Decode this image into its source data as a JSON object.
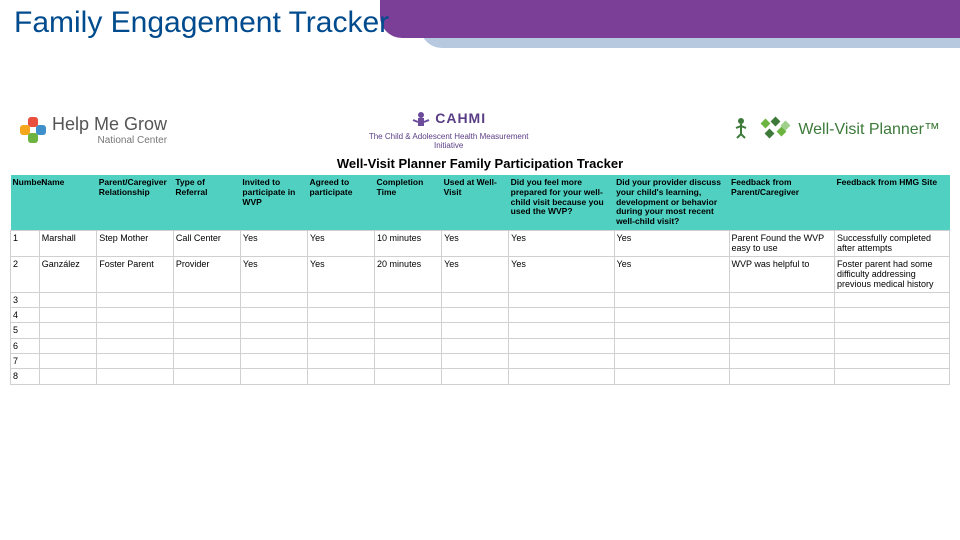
{
  "page_title": "Family Engagement Tracker",
  "colors": {
    "title_text": "#004b8d",
    "band_purple": "#7b3f98",
    "band_blue": "#a9bfd9",
    "header_bg": "#4fd0c0",
    "grid_border": "#d0d0d0"
  },
  "logos": {
    "hmg": {
      "line1": "Help Me Grow",
      "line2": "National Center"
    },
    "cahmi": {
      "name": "CAHMI",
      "sub": "The Child & Adolescent Health Measurement Initiative"
    },
    "wvp": {
      "text": "Well-Visit Planner™"
    }
  },
  "sheet_title": "Well-Visit Planner Family Participation Tracker",
  "table": {
    "columns": [
      "Number",
      "Name",
      "Parent/Caregiver Relationship",
      "Type of Referral",
      "Invited to participate in WVP",
      "Agreed to participate",
      "Completion Time",
      "Used at Well-Visit",
      "Did you feel more prepared for your well-child visit because you used the WVP?",
      "Did your provider discuss your child's learning, development or behavior during your most recent well-child visit?",
      "Feedback from Parent/Caregiver",
      "Feedback from HMG Site"
    ],
    "rows": [
      {
        "num": "1",
        "name": "Marshall",
        "rel": "Step Mother",
        "ref": "Call Center",
        "inv": "Yes",
        "agr": "Yes",
        "comp": "10 minutes",
        "used": "Yes",
        "prep": "Yes",
        "disc": "Yes",
        "fbpc": "Parent Found the WVP easy to use",
        "fbhmg": "Successfully completed after attempts"
      },
      {
        "num": "2",
        "name": "Ganzález",
        "rel": "Foster Parent",
        "ref": "Provider",
        "inv": "Yes",
        "agr": "Yes",
        "comp": "20 minutes",
        "used": "Yes",
        "prep": "Yes",
        "disc": "Yes",
        "fbpc": "WVP was helpful to",
        "fbhmg": "Foster parent had some difficulty addressing previous medical history"
      },
      {
        "num": "3"
      },
      {
        "num": "4"
      },
      {
        "num": "5"
      },
      {
        "num": "6"
      },
      {
        "num": "7"
      },
      {
        "num": "8"
      }
    ]
  }
}
